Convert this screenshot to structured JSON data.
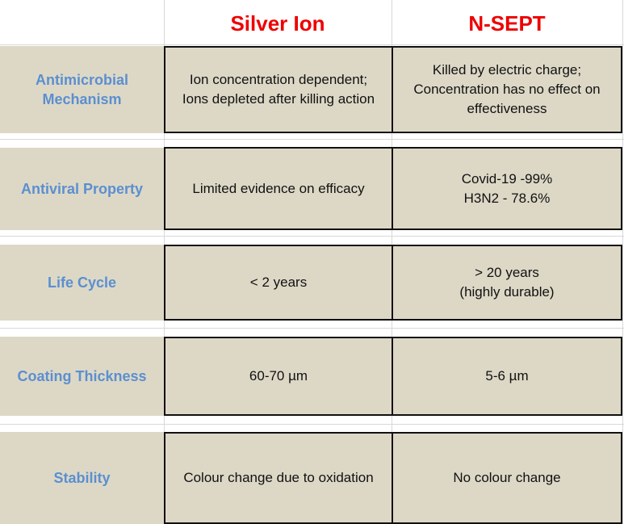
{
  "headers": {
    "col1": "Silver Ion",
    "col2": "N-SEPT"
  },
  "rows": [
    {
      "label": "Antimicrobial\nMechanism",
      "silver": "Ion concentration dependent;\nIons depleted after killing action",
      "nsept": "Killed by electric charge;\nConcentration has no effect on\neffectiveness"
    },
    {
      "label": "Antiviral Property",
      "silver": "Limited evidence on efficacy",
      "nsept": "Covid-19 -99%\nH3N2 - 78.6%"
    },
    {
      "label": "Life Cycle",
      "silver": "< 2 years",
      "nsept": "> 20 years\n(highly durable)"
    },
    {
      "label": "Coating Thickness",
      "silver": "60-70 µm",
      "nsept": "5-6 µm"
    },
    {
      "label": "Stability",
      "silver": "Colour change due to oxidation",
      "nsept": "No colour change"
    }
  ],
  "colors": {
    "header_text": "#ee0000",
    "label_text": "#5b8fd0",
    "cell_bg": "#ddd8c6"
  }
}
